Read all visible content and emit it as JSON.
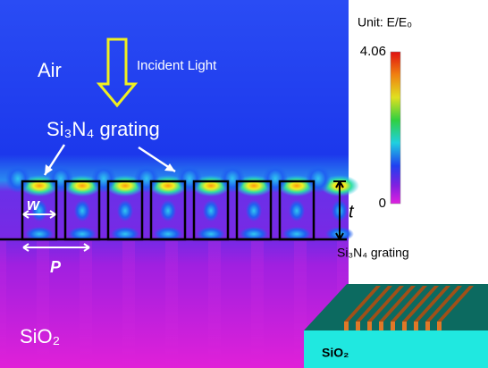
{
  "field_map": {
    "air_label": "Air",
    "incident_label": "Incident Light",
    "grating_label": "Si₃N₄ grating",
    "width_label": "w",
    "period_label": "P",
    "thickness_label": "t",
    "substrate_label": "SiO₂"
  },
  "colorbar": {
    "unit_label": "Unit: E/E₀",
    "max_label": "4.06",
    "min_label": "0"
  },
  "inset": {
    "grating_label": "Si₃N₄ grating",
    "substrate_label": "SiO₂"
  }
}
